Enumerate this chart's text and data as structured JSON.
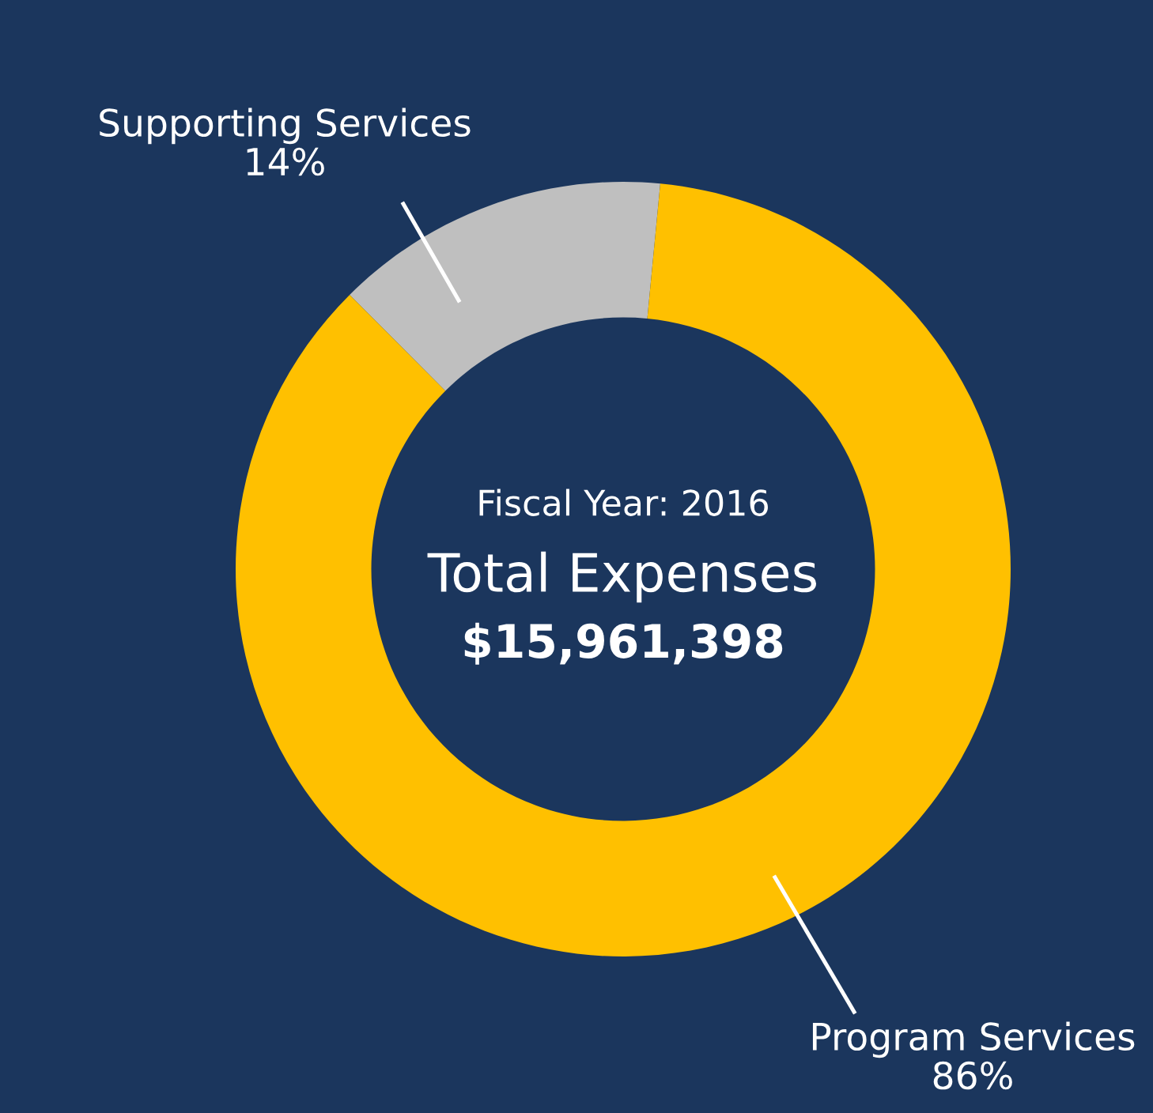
{
  "chart_data": {
    "type": "donut",
    "categories": [
      "Supporting Services",
      "Program Services"
    ],
    "values": [
      14,
      86
    ],
    "colors": [
      "#bfbfbf",
      "#ffc000"
    ],
    "value_labels": [
      "14%",
      "86%"
    ],
    "annotations": [
      "Fiscal Year: 2016",
      "Total Expenses",
      "$15,961,398"
    ]
  }
}
